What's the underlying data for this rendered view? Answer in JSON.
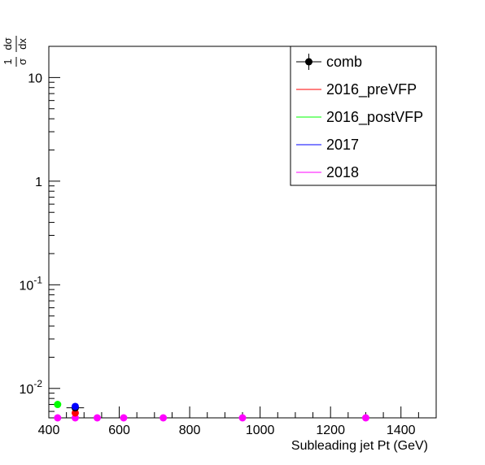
{
  "chart_data": {
    "type": "scatter",
    "title": "",
    "xlabel": "Subleading jet Pt (GeV)",
    "ylabel": "1/σ dσ/dx",
    "ylabel_num": "dσ",
    "ylabel_den": "dx",
    "ylabel_pref_num": "1",
    "ylabel_pref_den": "σ",
    "xlim": [
      400,
      1500
    ],
    "ylim": [
      0.0052,
      20
    ],
    "yscale": "log",
    "grid": false,
    "legend_position": "top-right",
    "x_ticks": [
      "400",
      "600",
      "800",
      "1000",
      "1200",
      "1400"
    ],
    "y_ticks": [
      {
        "base": "10",
        "exp": "-2"
      },
      {
        "base": "10",
        "exp": "-1"
      },
      {
        "base": "1",
        "exp": ""
      },
      {
        "base": "10",
        "exp": ""
      }
    ],
    "series": [
      {
        "name": "comb",
        "color": "#000000",
        "marker": "circle-errorbar",
        "points": [
          {
            "x": 475,
            "y": 0.0065,
            "xerr": 25
          }
        ]
      },
      {
        "name": "2016_preVFP",
        "color": "#ff0000",
        "marker": "circle",
        "points": [
          {
            "x": 475,
            "y": 0.0058
          }
        ]
      },
      {
        "name": "2016_postVFP",
        "color": "#00ff00",
        "marker": "circle",
        "points": [
          {
            "x": 425,
            "y": 0.007
          }
        ]
      },
      {
        "name": "2017",
        "color": "#0000ff",
        "marker": "circle",
        "points": [
          {
            "x": 475,
            "y": 0.0067
          }
        ]
      },
      {
        "name": "2018",
        "color": "#ff00ff",
        "marker": "circle",
        "points": [
          {
            "x": 425,
            "y": 0.0051
          },
          {
            "x": 475,
            "y": 0.0051
          },
          {
            "x": 537.5,
            "y": 0.0051
          },
          {
            "x": 612.5,
            "y": 0.0051
          },
          {
            "x": 725,
            "y": 0.0051
          },
          {
            "x": 950,
            "y": 0.0051
          },
          {
            "x": 1300,
            "y": 0.0051
          }
        ]
      }
    ]
  }
}
